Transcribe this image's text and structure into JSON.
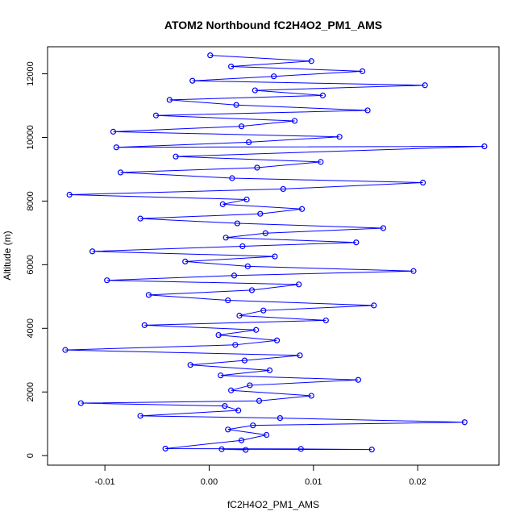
{
  "chart_data": {
    "type": "scatter",
    "title": "ATOM2 Northbound fC2H4O2_PM1_AMS",
    "xlabel": "fC2H4O2_PM1_AMS",
    "ylabel": "Altitude (m)",
    "xlim": [
      -0.0155,
      0.0278
    ],
    "ylim": [
      -300,
      12850
    ],
    "xticks": [
      -0.01,
      0.0,
      0.01,
      0.02
    ],
    "xtick_labels": [
      "-0.01",
      "0.00",
      "0.01",
      "0.02"
    ],
    "yticks": [
      0,
      2000,
      4000,
      6000,
      8000,
      10000,
      12000
    ],
    "ytick_labels": [
      "0",
      "2000",
      "4000",
      "6000",
      "8000",
      "10000",
      "12000"
    ],
    "grid": false,
    "legend": "none",
    "series_color": "#0000ff",
    "markers": "open-circle",
    "connected": true,
    "series": [
      {
        "points": [
          [
            0.0035,
            180
          ],
          [
            0.0012,
            200
          ],
          [
            0.0156,
            190
          ],
          [
            0.0088,
            210
          ],
          [
            -0.0042,
            220
          ],
          [
            0.0031,
            480
          ],
          [
            0.0055,
            650
          ],
          [
            0.0018,
            820
          ],
          [
            0.0042,
            950
          ],
          [
            0.0245,
            1050
          ],
          [
            0.0068,
            1180
          ],
          [
            -0.0066,
            1250
          ],
          [
            0.0028,
            1420
          ],
          [
            0.0015,
            1560
          ],
          [
            -0.0123,
            1650
          ],
          [
            0.0048,
            1720
          ],
          [
            0.0098,
            1880
          ],
          [
            0.0021,
            2050
          ],
          [
            0.0039,
            2210
          ],
          [
            0.0143,
            2380
          ],
          [
            0.0011,
            2520
          ],
          [
            0.0058,
            2680
          ],
          [
            -0.0018,
            2850
          ],
          [
            0.0034,
            2990
          ],
          [
            0.0087,
            3150
          ],
          [
            -0.0138,
            3320
          ],
          [
            0.0025,
            3480
          ],
          [
            0.0065,
            3620
          ],
          [
            0.0009,
            3790
          ],
          [
            0.0045,
            3950
          ],
          [
            -0.0062,
            4100
          ],
          [
            0.0112,
            4250
          ],
          [
            0.0029,
            4400
          ],
          [
            0.0052,
            4560
          ],
          [
            0.0158,
            4720
          ],
          [
            0.0018,
            4880
          ],
          [
            -0.0058,
            5050
          ],
          [
            0.0041,
            5200
          ],
          [
            0.0086,
            5380
          ],
          [
            -0.0098,
            5510
          ],
          [
            0.0024,
            5660
          ],
          [
            0.0196,
            5800
          ],
          [
            0.0037,
            5950
          ],
          [
            -0.0023,
            6100
          ],
          [
            0.0063,
            6260
          ],
          [
            -0.0112,
            6420
          ],
          [
            0.0032,
            6580
          ],
          [
            0.0141,
            6700
          ],
          [
            0.0016,
            6850
          ],
          [
            0.0054,
            6990
          ],
          [
            0.0167,
            7150
          ],
          [
            0.0027,
            7300
          ],
          [
            -0.0066,
            7450
          ],
          [
            0.0049,
            7600
          ],
          [
            0.0089,
            7750
          ],
          [
            0.0013,
            7900
          ],
          [
            0.0036,
            8050
          ],
          [
            -0.0134,
            8200
          ],
          [
            0.0071,
            8380
          ],
          [
            0.0205,
            8580
          ],
          [
            0.0022,
            8720
          ],
          [
            -0.0085,
            8900
          ],
          [
            0.0046,
            9050
          ],
          [
            0.0107,
            9230
          ],
          [
            -0.0032,
            9400
          ],
          [
            0.0264,
            9720
          ],
          [
            -0.0089,
            9690
          ],
          [
            0.0038,
            9850
          ],
          [
            0.0125,
            10020
          ],
          [
            -0.0092,
            10180
          ],
          [
            0.0031,
            10350
          ],
          [
            0.0082,
            10520
          ],
          [
            -0.0051,
            10690
          ],
          [
            0.0152,
            10850
          ],
          [
            0.0026,
            11020
          ],
          [
            -0.0038,
            11180
          ],
          [
            0.0109,
            11320
          ],
          [
            0.0044,
            11480
          ],
          [
            0.0207,
            11640
          ],
          [
            -0.0016,
            11780
          ],
          [
            0.0062,
            11920
          ],
          [
            0.0147,
            12080
          ],
          [
            0.0021,
            12230
          ],
          [
            0.0098,
            12400
          ],
          [
            0.0001,
            12580
          ]
        ]
      }
    ]
  }
}
